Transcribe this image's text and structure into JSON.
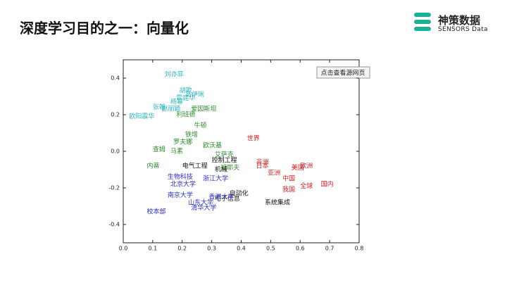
{
  "slide": {
    "title": "深度学习目的之一：向量化",
    "logo_name": "神策数据",
    "logo_sub": "SENSORS Data",
    "button": "点击查看源网页"
  },
  "chart_data": {
    "type": "scatter",
    "xlim": [
      0,
      0.8
    ],
    "ylim": [
      -0.5,
      0.5
    ],
    "xticks": [
      {
        "value": 0,
        "label": "0.0"
      },
      0.1,
      0.2,
      0.3,
      0.4,
      0.5,
      0.6,
      0.7,
      0.8
    ],
    "yticks": [
      -0.4,
      -0.2,
      {
        "value": 0,
        "label": "0.0"
      },
      0.2,
      0.4
    ],
    "series": [
      {
        "color": "#2cb5c0",
        "labels": [
          "刘亦菲",
          "胡歌",
          "马伊琍",
          "霍建华",
          "杨幂",
          "张翰",
          "赵丽颖",
          "欧阳震华"
        ],
        "x": [
          0.14,
          0.19,
          0.21,
          0.18,
          0.16,
          0.1,
          0.13,
          0.02
        ],
        "values": [
          0.42,
          0.33,
          0.31,
          0.29,
          0.27,
          0.24,
          0.23,
          0.19
        ]
      },
      {
        "color": "#2e8b2e",
        "labels": [
          "爱因斯坦",
          "利班德",
          "牛顿",
          "铁增",
          "罗夫娜",
          "欧沃基",
          "查姆",
          "马素",
          "艾萨克",
          "内蒂",
          "福耶夫"
        ],
        "x": [
          0.23,
          0.18,
          0.24,
          0.21,
          0.17,
          0.27,
          0.1,
          0.16,
          0.31,
          0.08,
          0.33
        ],
        "values": [
          0.23,
          0.2,
          0.14,
          0.09,
          0.05,
          0.03,
          0.01,
          0.0,
          -0.02,
          -0.08,
          -0.09
        ]
      },
      {
        "color": "#111111",
        "labels": [
          "控制工程",
          "电气工程",
          "机械",
          "自动化",
          "电子信息",
          "系统集成"
        ],
        "x": [
          0.3,
          0.2,
          0.31,
          0.36,
          0.31,
          0.48
        ],
        "values": [
          -0.05,
          -0.08,
          -0.1,
          -0.23,
          -0.26,
          -0.28
        ]
      },
      {
        "color": "#2a2acc",
        "labels": [
          "生物科技",
          "浙江大学",
          "北京大学",
          "南京大学",
          "香港大学",
          "山东大学",
          "清华大学",
          "校本部"
        ],
        "x": [
          0.15,
          0.27,
          0.16,
          0.15,
          0.29,
          0.22,
          0.23,
          0.08
        ],
        "values": [
          -0.14,
          -0.15,
          -0.18,
          -0.24,
          -0.25,
          -0.28,
          -0.31,
          -0.33
        ]
      },
      {
        "color": "#d42020",
        "labels": [
          "世界",
          "非洲",
          "日本",
          "亚洲",
          "美国",
          "欧洲",
          "中国",
          "全球",
          "国内",
          "我国"
        ],
        "x": [
          0.42,
          0.45,
          0.45,
          0.49,
          0.57,
          0.6,
          0.54,
          0.6,
          0.67,
          0.54
        ],
        "values": [
          0.07,
          -0.06,
          -0.08,
          -0.12,
          -0.09,
          -0.08,
          -0.15,
          -0.19,
          -0.18,
          -0.21
        ]
      }
    ]
  }
}
